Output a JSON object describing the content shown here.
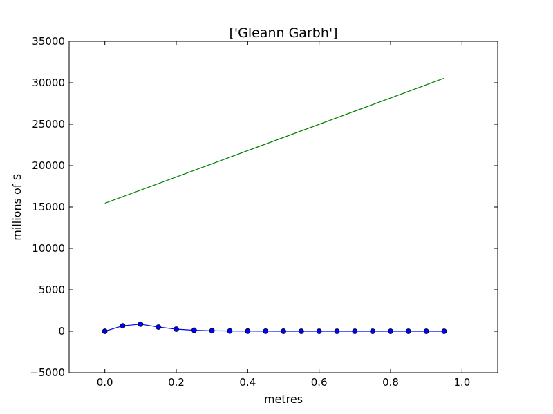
{
  "chart_data": {
    "type": "line",
    "title": "['Gleann Garbh']",
    "xlabel": "metres",
    "ylabel": "millions of $",
    "xlim": [
      -0.1,
      1.1
    ],
    "ylim": [
      -5000,
      35000
    ],
    "xticks": [
      0.0,
      0.2,
      0.4,
      0.6,
      0.8,
      1.0
    ],
    "xtick_labels": [
      "0.0",
      "0.2",
      "0.4",
      "0.6",
      "0.8",
      "1.0"
    ],
    "yticks": [
      -5000,
      0,
      5000,
      10000,
      15000,
      20000,
      25000,
      30000,
      35000
    ],
    "ytick_labels": [
      "−5000",
      "0",
      "5000",
      "10000",
      "15000",
      "20000",
      "25000",
      "30000",
      "35000"
    ],
    "grid": false,
    "series": [
      {
        "color": "#0000ff",
        "marker": "circle",
        "x": [
          0.0,
          0.05,
          0.1,
          0.15,
          0.2,
          0.25,
          0.3,
          0.35,
          0.4,
          0.45,
          0.5,
          0.55,
          0.6,
          0.65,
          0.7,
          0.75,
          0.8,
          0.85,
          0.9,
          0.95
        ],
        "y": [
          0,
          650,
          850,
          500,
          250,
          120,
          60,
          30,
          15,
          8,
          4,
          2,
          1,
          0,
          0,
          0,
          0,
          0,
          0,
          0
        ]
      },
      {
        "color": "#008000",
        "marker": "none",
        "x": [
          0.0,
          0.95
        ],
        "y": [
          15450,
          30550
        ]
      }
    ]
  }
}
